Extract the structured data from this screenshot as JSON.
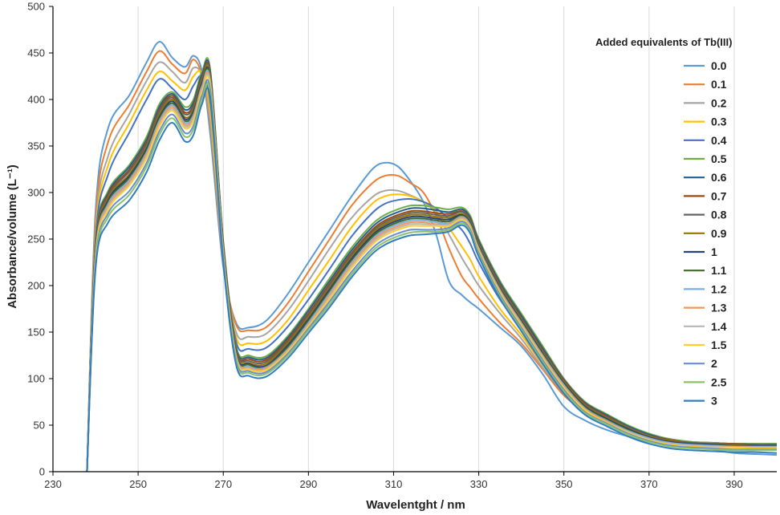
{
  "chart_data": {
    "type": "line",
    "title": "",
    "xlabel": "Wavelentght / nm",
    "ylabel": "Absorbance/volume (L⁻¹)",
    "xlim": [
      230,
      400
    ],
    "ylim": [
      0,
      500
    ],
    "x_ticks": [
      230,
      250,
      270,
      290,
      310,
      330,
      350,
      370,
      390
    ],
    "y_ticks": [
      0,
      50,
      100,
      150,
      200,
      250,
      300,
      350,
      400,
      450,
      500
    ],
    "grid": "vertical",
    "legend": {
      "title": "Added equivalents of  Tb(III)",
      "position": "right"
    },
    "anchor_x": [
      238,
      240,
      243,
      248,
      252,
      255,
      258,
      261,
      263,
      265,
      267,
      270,
      273,
      276,
      280,
      285,
      290,
      295,
      300,
      305,
      308,
      311,
      314,
      317,
      320,
      323,
      326,
      328,
      330,
      335,
      340,
      345,
      350,
      355,
      360,
      365,
      370,
      375,
      380,
      385,
      390,
      395,
      400
    ],
    "series": [
      {
        "name": "0.0",
        "color": "#5B9BD5",
        "values": [
          0,
          280,
          370,
          405,
          440,
          462,
          445,
          435,
          447,
          430,
          360,
          220,
          160,
          155,
          162,
          190,
          225,
          260,
          295,
          325,
          332,
          328,
          312,
          290,
          255,
          205,
          190,
          182,
          175,
          155,
          135,
          105,
          70,
          55,
          45,
          38,
          32,
          30,
          28,
          24,
          20,
          19,
          18
        ]
      },
      {
        "name": "0.1",
        "color": "#ED7D31",
        "values": [
          0,
          270,
          355,
          395,
          430,
          452,
          438,
          428,
          443,
          425,
          370,
          225,
          158,
          152,
          155,
          180,
          215,
          250,
          285,
          310,
          318,
          318,
          310,
          300,
          275,
          240,
          210,
          198,
          186,
          160,
          138,
          110,
          82,
          65,
          55,
          45,
          36,
          32,
          30,
          30,
          30,
          30,
          30
        ]
      },
      {
        "name": "0.2",
        "color": "#A5A5A5",
        "values": [
          0,
          262,
          340,
          385,
          420,
          440,
          430,
          418,
          434,
          425,
          375,
          228,
          150,
          145,
          148,
          172,
          205,
          240,
          272,
          295,
          302,
          302,
          297,
          290,
          278,
          255,
          230,
          215,
          200,
          170,
          143,
          112,
          85,
          68,
          57,
          47,
          38,
          33,
          31,
          30,
          30,
          30,
          30
        ]
      },
      {
        "name": "0.3",
        "color": "#FFC000",
        "values": [
          0,
          255,
          330,
          375,
          410,
          430,
          420,
          410,
          425,
          428,
          385,
          232,
          145,
          138,
          140,
          162,
          195,
          228,
          262,
          288,
          296,
          298,
          296,
          290,
          280,
          262,
          242,
          228,
          210,
          175,
          147,
          115,
          88,
          70,
          58,
          48,
          39,
          34,
          32,
          31,
          30,
          30,
          30
        ]
      },
      {
        "name": "0.4",
        "color": "#4472C4",
        "values": [
          0,
          250,
          320,
          365,
          400,
          422,
          412,
          400,
          415,
          425,
          395,
          240,
          140,
          132,
          133,
          155,
          185,
          218,
          252,
          278,
          288,
          292,
          293,
          290,
          283,
          272,
          260,
          245,
          225,
          185,
          155,
          120,
          92,
          72,
          60,
          49,
          40,
          35,
          32,
          31,
          30,
          30,
          30
        ]
      },
      {
        "name": "0.5",
        "color": "#70AD47",
        "values": [
          0,
          245,
          302,
          330,
          360,
          395,
          408,
          392,
          400,
          430,
          430,
          248,
          135,
          125,
          124,
          145,
          175,
          208,
          240,
          266,
          276,
          282,
          286,
          286,
          284,
          282,
          284,
          275,
          250,
          205,
          170,
          135,
          100,
          75,
          62,
          50,
          41,
          35,
          32,
          31,
          30,
          30,
          30
        ]
      },
      {
        "name": "0.6",
        "color": "#255E91",
        "values": [
          0,
          243,
          300,
          328,
          357,
          392,
          406,
          389,
          397,
          427,
          428,
          246,
          133,
          123,
          122,
          143,
          173,
          205,
          237,
          263,
          273,
          279,
          283,
          283,
          281,
          279,
          282,
          273,
          248,
          203,
          168,
          133,
          99,
          74,
          61,
          49,
          40,
          34,
          31,
          30,
          30,
          29,
          29
        ]
      },
      {
        "name": "0.7",
        "color": "#9E480E",
        "values": [
          0,
          241,
          298,
          325,
          354,
          389,
          404,
          386,
          394,
          424,
          426,
          244,
          131,
          121,
          120,
          141,
          170,
          202,
          234,
          260,
          270,
          276,
          280,
          280,
          278,
          277,
          280,
          271,
          246,
          201,
          166,
          131,
          98,
          73,
          60,
          48,
          39,
          34,
          31,
          30,
          30,
          29,
          29
        ]
      },
      {
        "name": "0.8",
        "color": "#636363",
        "values": [
          0,
          240,
          296,
          323,
          352,
          387,
          402,
          384,
          392,
          422,
          425,
          243,
          130,
          119,
          118,
          139,
          168,
          200,
          232,
          258,
          268,
          274,
          278,
          278,
          276,
          275,
          279,
          270,
          245,
          200,
          165,
          130,
          97,
          72,
          59,
          48,
          39,
          33,
          31,
          30,
          29,
          29,
          29
        ]
      },
      {
        "name": "0.9",
        "color": "#997300",
        "values": [
          0,
          238,
          294,
          320,
          349,
          384,
          400,
          381,
          389,
          420,
          423,
          241,
          128,
          117,
          116,
          137,
          166,
          198,
          230,
          256,
          266,
          272,
          276,
          276,
          274,
          273,
          277,
          268,
          243,
          198,
          163,
          128,
          96,
          71,
          58,
          47,
          38,
          33,
          30,
          29,
          29,
          28,
          28
        ]
      },
      {
        "name": "1",
        "color": "#264478",
        "values": [
          0,
          236,
          292,
          318,
          347,
          381,
          398,
          379,
          387,
          418,
          421,
          240,
          127,
          116,
          114,
          135,
          164,
          196,
          228,
          254,
          264,
          270,
          274,
          274,
          272,
          271,
          276,
          267,
          242,
          197,
          162,
          127,
          95,
          70,
          57,
          46,
          37,
          32,
          30,
          29,
          28,
          28,
          28
        ]
      },
      {
        "name": "1.1",
        "color": "#43682B",
        "values": [
          0,
          235,
          290,
          316,
          345,
          379,
          396,
          377,
          385,
          416,
          420,
          239,
          126,
          115,
          113,
          133,
          162,
          194,
          226,
          252,
          262,
          268,
          272,
          272,
          270,
          269,
          275,
          266,
          241,
          196,
          161,
          126,
          94,
          69,
          56,
          45,
          36,
          31,
          29,
          28,
          28,
          27,
          27
        ]
      },
      {
        "name": "1.2",
        "color": "#7CAFDD",
        "values": [
          0,
          233,
          288,
          314,
          343,
          377,
          394,
          375,
          383,
          414,
          418,
          237,
          125,
          113,
          112,
          131,
          160,
          192,
          224,
          250,
          260,
          266,
          270,
          270,
          268,
          267,
          274,
          265,
          240,
          195,
          160,
          125,
          93,
          68,
          55,
          44,
          36,
          31,
          29,
          28,
          27,
          27,
          27
        ]
      },
      {
        "name": "1.3",
        "color": "#F1975A",
        "values": [
          0,
          232,
          286,
          312,
          341,
          375,
          392,
          373,
          381,
          412,
          416,
          236,
          124,
          112,
          111,
          130,
          158,
          190,
          222,
          248,
          258,
          264,
          268,
          268,
          266,
          266,
          273,
          264,
          239,
          194,
          159,
          124,
          92,
          67,
          54,
          43,
          35,
          30,
          28,
          27,
          27,
          26,
          26
        ]
      },
      {
        "name": "1.4",
        "color": "#B7B7B7",
        "values": [
          0,
          230,
          284,
          310,
          339,
          373,
          390,
          371,
          379,
          410,
          414,
          234,
          123,
          111,
          110,
          129,
          157,
          188,
          220,
          246,
          256,
          262,
          266,
          266,
          265,
          265,
          272,
          263,
          238,
          193,
          158,
          123,
          91,
          66,
          53,
          43,
          35,
          30,
          28,
          27,
          26,
          26,
          26
        ]
      },
      {
        "name": "1.5",
        "color": "#FFCD33",
        "values": [
          0,
          229,
          282,
          308,
          337,
          371,
          388,
          369,
          377,
          408,
          412,
          233,
          122,
          110,
          109,
          128,
          156,
          186,
          218,
          244,
          254,
          260,
          264,
          264,
          264,
          264,
          271,
          262,
          237,
          192,
          157,
          122,
          90,
          66,
          53,
          42,
          34,
          29,
          27,
          26,
          26,
          25,
          25
        ]
      },
      {
        "name": "2",
        "color": "#698ED0",
        "values": [
          0,
          225,
          278,
          302,
          332,
          366,
          384,
          364,
          372,
          404,
          408,
          230,
          120,
          108,
          107,
          126,
          154,
          183,
          214,
          240,
          250,
          256,
          260,
          260,
          260,
          262,
          269,
          260,
          235,
          190,
          155,
          120,
          88,
          64,
          52,
          41,
          33,
          28,
          26,
          25,
          24,
          24,
          24
        ]
      },
      {
        "name": "2.5",
        "color": "#8CC168",
        "values": [
          0,
          222,
          274,
          298,
          328,
          362,
          380,
          360,
          368,
          400,
          404,
          228,
          118,
          106,
          105,
          124,
          152,
          180,
          211,
          237,
          247,
          253,
          257,
          258,
          258,
          260,
          267,
          258,
          233,
          188,
          153,
          118,
          86,
          63,
          51,
          40,
          32,
          27,
          25,
          24,
          23,
          23,
          23
        ]
      },
      {
        "name": "3",
        "color": "#327DC2",
        "values": [
          0,
          218,
          268,
          292,
          322,
          356,
          375,
          355,
          362,
          395,
          400,
          225,
          115,
          103,
          102,
          121,
          149,
          177,
          208,
          234,
          244,
          250,
          254,
          255,
          256,
          258,
          265,
          256,
          231,
          186,
          151,
          116,
          84,
          61,
          49,
          38,
          30,
          25,
          23,
          22,
          21,
          21,
          20
        ]
      }
    ]
  }
}
